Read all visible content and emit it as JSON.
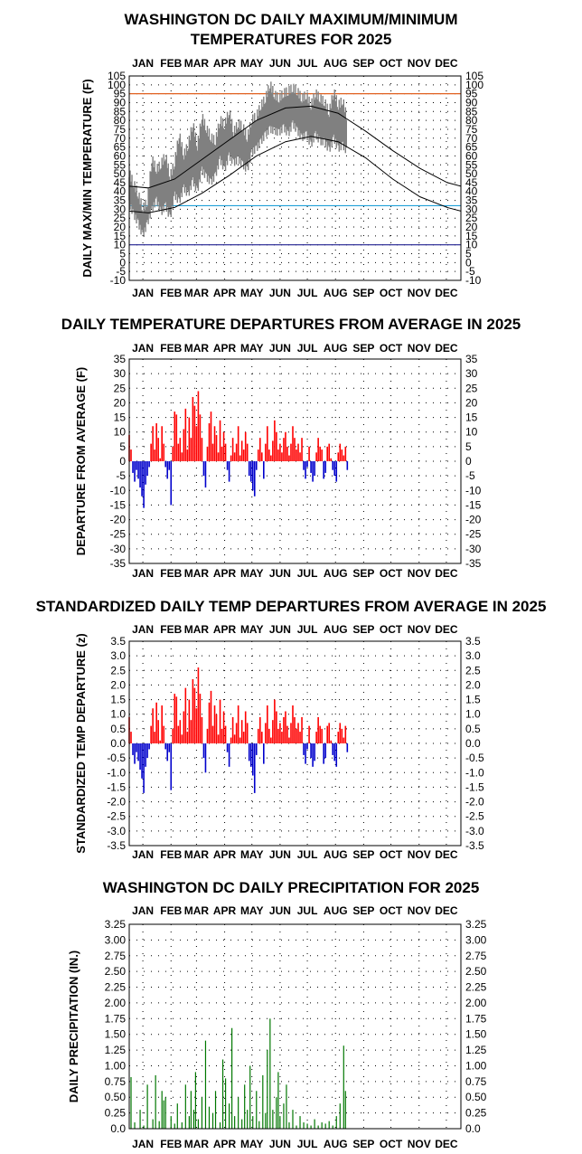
{
  "months": [
    "JAN",
    "FEB",
    "MAR",
    "APR",
    "MAY",
    "JUN",
    "JUL",
    "AUG",
    "SEP",
    "OCT",
    "NOV",
    "DEC"
  ],
  "chart_data": [
    {
      "type": "line",
      "title": [
        "WASHINGTON DC DAILY MAXIMUM/MINIMUM",
        "TEMPERATURES FOR 2025"
      ],
      "ylabel": "DAILY MAX/MIN TEMPERATURE (F)",
      "ylim": [
        -10,
        105
      ],
      "ytick_step": 5,
      "ytick_labels": [
        "105",
        "100",
        "95",
        "90",
        "85",
        "80",
        "75",
        "70",
        "65",
        "60",
        "55",
        "50",
        "45",
        "40",
        "35",
        "30",
        "25",
        "20",
        "15",
        "10",
        "5",
        "0",
        "-5",
        "-10"
      ],
      "grid": "dotted",
      "reference_lines": [
        {
          "value": 95,
          "color": "#e06020"
        },
        {
          "value": 32,
          "color": "#20a0d8"
        },
        {
          "value": 10,
          "color": "#202090"
        }
      ],
      "normal_high": {
        "day": [
          0,
          21,
          50,
          80,
          110,
          140,
          172,
          200,
          230,
          260,
          290,
          320,
          350,
          365
        ],
        "value": [
          43,
          42,
          47,
          58,
          69,
          80,
          87,
          88,
          84,
          74,
          63,
          53,
          45,
          43
        ]
      },
      "normal_low": {
        "day": [
          0,
          21,
          50,
          80,
          110,
          140,
          172,
          200,
          230,
          260,
          290,
          320,
          350,
          365
        ],
        "value": [
          29,
          28,
          31,
          39,
          49,
          60,
          68,
          71,
          68,
          59,
          47,
          37,
          31,
          29
        ]
      },
      "observed_high": {
        "day": [
          0,
          5,
          10,
          15,
          20,
          25,
          30,
          35,
          40,
          45,
          50,
          55,
          60,
          65,
          70,
          75,
          80,
          85,
          90,
          95,
          100,
          105,
          110,
          115,
          120,
          125,
          130,
          135,
          140,
          145,
          150,
          155,
          160,
          165,
          170,
          175,
          180,
          185,
          190,
          195,
          200,
          205,
          210,
          215,
          220,
          225,
          230,
          235,
          240
        ],
        "value": [
          50,
          44,
          38,
          30,
          34,
          58,
          52,
          55,
          60,
          48,
          56,
          72,
          60,
          66,
          78,
          65,
          82,
          75,
          70,
          68,
          80,
          77,
          85,
          73,
          78,
          76,
          70,
          80,
          82,
          88,
          92,
          100,
          94,
          92,
          95,
          96,
          98,
          96,
          92,
          94,
          88,
          95,
          92,
          90,
          84,
          96,
          88,
          91,
          80
        ]
      },
      "observed_low": {
        "day": [
          0,
          5,
          10,
          15,
          20,
          25,
          30,
          35,
          40,
          45,
          50,
          55,
          60,
          65,
          70,
          75,
          80,
          85,
          90,
          95,
          100,
          105,
          110,
          115,
          120,
          125,
          130,
          135,
          140,
          145,
          150,
          155,
          160,
          165,
          170,
          175,
          180,
          185,
          190,
          195,
          200,
          205,
          210,
          215,
          220,
          225,
          230,
          235,
          240
        ],
        "value": [
          33,
          27,
          22,
          15,
          22,
          30,
          35,
          28,
          32,
          25,
          38,
          34,
          42,
          38,
          46,
          40,
          52,
          48,
          45,
          49,
          58,
          52,
          60,
          56,
          58,
          55,
          52,
          62,
          64,
          68,
          72,
          75,
          74,
          73,
          76,
          72,
          78,
          74,
          70,
          72,
          66,
          72,
          68,
          68,
          63,
          70,
          64,
          66,
          62
        ]
      }
    },
    {
      "type": "bar",
      "title": [
        "DAILY TEMPERATURE DEPARTURES FROM AVERAGE IN 2025"
      ],
      "ylabel": "DEPARTURE FROM AVERAGE (F)",
      "ylim": [
        -35,
        35
      ],
      "ytick_step": 5,
      "ytick_labels": [
        "35",
        "30",
        "25",
        "20",
        "15",
        "10",
        "5",
        "0",
        "-5",
        "-10",
        "-15",
        "-20",
        "-25",
        "-30",
        "-35"
      ],
      "grid": "dotted",
      "positive_color": "#ff0000",
      "negative_color": "#0000cc",
      "day": [
        0,
        2,
        4,
        6,
        8,
        10,
        12,
        14,
        16,
        18,
        20,
        22,
        24,
        26,
        28,
        30,
        32,
        34,
        36,
        38,
        40,
        42,
        44,
        46,
        48,
        50,
        52,
        54,
        56,
        58,
        60,
        62,
        64,
        66,
        68,
        70,
        72,
        74,
        76,
        78,
        80,
        82,
        84,
        86,
        88,
        90,
        92,
        94,
        96,
        98,
        100,
        102,
        104,
        106,
        108,
        110,
        112,
        114,
        116,
        118,
        120,
        122,
        124,
        126,
        128,
        130,
        132,
        134,
        136,
        138,
        140,
        142,
        144,
        146,
        148,
        150,
        152,
        154,
        156,
        158,
        160,
        162,
        164,
        166,
        168,
        170,
        172,
        174,
        176,
        178,
        180,
        182,
        184,
        186,
        188,
        190,
        192,
        194,
        196,
        198,
        200,
        202,
        204,
        206,
        208,
        210,
        212,
        214,
        216,
        218,
        220,
        222,
        224,
        226,
        228,
        230,
        232,
        234,
        236,
        238,
        240
      ],
      "values": [
        9,
        4,
        -4,
        -7,
        -3,
        -6,
        -9,
        -12,
        -16,
        -8,
        -5,
        -2,
        6,
        12,
        4,
        13,
        8,
        1,
        12,
        6,
        -2,
        -6,
        -3,
        -15,
        5,
        17,
        16,
        6,
        8,
        3,
        11,
        18,
        4,
        15,
        8,
        22,
        19,
        12,
        24,
        16,
        8,
        -5,
        -9,
        5,
        13,
        17,
        6,
        12,
        9,
        3,
        14,
        5,
        10,
        6,
        -3,
        -7,
        2,
        8,
        3,
        6,
        12,
        2,
        7,
        4,
        10,
        6,
        -5,
        -7,
        -10,
        -12,
        -3,
        4,
        8,
        3,
        -6,
        6,
        12,
        4,
        2,
        7,
        14,
        10,
        4,
        6,
        3,
        8,
        10,
        5,
        2,
        6,
        12,
        8,
        4,
        6,
        3,
        8,
        -3,
        -6,
        -2,
        5,
        -4,
        -7,
        -5,
        3,
        8,
        5,
        4,
        -6,
        -4,
        5,
        6,
        1,
        -3,
        -5,
        -7,
        3,
        6,
        4,
        2,
        5,
        -3
      ],
      "ytick_count": 15
    },
    {
      "type": "bar",
      "title": [
        "STANDARDIZED DAILY TEMP DEPARTURES FROM AVERAGE IN 2025"
      ],
      "ylabel": "STANDARDIZED TEMP DEPARTURE (z)",
      "ylim": [
        -3.5,
        3.5
      ],
      "ytick_step": 0.5,
      "ytick_labels": [
        "3.5",
        "3.0",
        "2.5",
        "2.0",
        "1.5",
        "1.0",
        "0.5",
        "0.0",
        "-0.5",
        "-1.0",
        "-1.5",
        "-2.0",
        "-2.5",
        "-3.0",
        "-3.5"
      ],
      "grid": "dotted",
      "positive_color": "#ff0000",
      "negative_color": "#0000cc",
      "day": [
        0,
        2,
        4,
        6,
        8,
        10,
        12,
        14,
        16,
        18,
        20,
        22,
        24,
        26,
        28,
        30,
        32,
        34,
        36,
        38,
        40,
        42,
        44,
        46,
        48,
        50,
        52,
        54,
        56,
        58,
        60,
        62,
        64,
        66,
        68,
        70,
        72,
        74,
        76,
        78,
        80,
        82,
        84,
        86,
        88,
        90,
        92,
        94,
        96,
        98,
        100,
        102,
        104,
        106,
        108,
        110,
        112,
        114,
        116,
        118,
        120,
        122,
        124,
        126,
        128,
        130,
        132,
        134,
        136,
        138,
        140,
        142,
        144,
        146,
        148,
        150,
        152,
        154,
        156,
        158,
        160,
        162,
        164,
        166,
        168,
        170,
        172,
        174,
        176,
        178,
        180,
        182,
        184,
        186,
        188,
        190,
        192,
        194,
        196,
        198,
        200,
        202,
        204,
        206,
        208,
        210,
        212,
        214,
        216,
        218,
        220,
        222,
        224,
        226,
        228,
        230,
        232,
        234,
        236,
        238,
        240
      ],
      "values": [
        0.9,
        0.4,
        -0.4,
        -0.7,
        -0.3,
        -0.6,
        -0.9,
        -1.2,
        -1.7,
        -0.8,
        -0.5,
        -0.2,
        0.6,
        1.2,
        0.4,
        1.4,
        0.8,
        0.1,
        1.3,
        0.6,
        -0.2,
        -0.6,
        -0.3,
        -1.6,
        0.5,
        1.7,
        1.6,
        0.6,
        0.8,
        0.3,
        1.1,
        1.9,
        0.4,
        1.5,
        0.8,
        2.2,
        1.9,
        1.2,
        2.6,
        1.7,
        0.9,
        -0.5,
        -1.0,
        0.5,
        1.4,
        1.8,
        0.6,
        1.3,
        1.0,
        0.3,
        1.5,
        0.5,
        1.1,
        0.6,
        -0.3,
        -0.8,
        0.2,
        0.9,
        0.3,
        0.7,
        1.3,
        0.2,
        0.8,
        0.4,
        1.1,
        0.7,
        -0.6,
        -0.8,
        -1.1,
        -1.7,
        -0.4,
        0.5,
        0.9,
        0.4,
        -0.7,
        0.7,
        1.3,
        0.5,
        0.2,
        0.8,
        1.5,
        1.1,
        0.5,
        0.7,
        0.4,
        0.9,
        1.1,
        0.6,
        0.2,
        0.7,
        1.3,
        0.9,
        0.5,
        0.7,
        0.4,
        0.9,
        -0.4,
        -0.7,
        -0.2,
        0.6,
        -0.5,
        -0.8,
        -0.6,
        0.4,
        0.9,
        0.6,
        0.5,
        -0.7,
        -0.5,
        0.6,
        0.7,
        0.1,
        -0.4,
        -0.6,
        -0.8,
        0.4,
        0.7,
        0.5,
        0.2,
        0.6,
        -0.3
      ]
    },
    {
      "type": "bar",
      "title": [
        "WASHINGTON DC DAILY PRECIPITATION FOR 2025"
      ],
      "ylabel": "DAILY PRECIPITATION (IN.)",
      "ylim": [
        0,
        3.25
      ],
      "ytick_step": 0.25,
      "ytick_labels": [
        "3.25",
        "3.00",
        "2.75",
        "2.50",
        "2.25",
        "2.00",
        "1.75",
        "1.50",
        "1.25",
        "1.00",
        "0.75",
        "0.50",
        "0.25",
        "0.0"
      ],
      "grid": "dotted",
      "bar_color": "#007700",
      "day": [
        2,
        6,
        12,
        16,
        20,
        26,
        29,
        33,
        36,
        38,
        40,
        46,
        50,
        53,
        58,
        62,
        66,
        68,
        71,
        73,
        76,
        80,
        84,
        88,
        92,
        95,
        100,
        103,
        106,
        110,
        113,
        116,
        120,
        124,
        127,
        130,
        133,
        136,
        140,
        143,
        147,
        150,
        152,
        155,
        158,
        162,
        164,
        166,
        170,
        173,
        176,
        180,
        184,
        188,
        192,
        196,
        200,
        204,
        208,
        212,
        216,
        220,
        224,
        228,
        232,
        236,
        238
      ],
      "values": [
        0.82,
        0.1,
        0.3,
        0.05,
        0.7,
        0.15,
        0.85,
        0.12,
        0.6,
        0.45,
        0.5,
        0.2,
        0.08,
        0.4,
        0.1,
        0.7,
        0.2,
        0.6,
        0.3,
        0.9,
        0.15,
        0.5,
        1.4,
        0.35,
        0.25,
        0.6,
        0.1,
        1.1,
        0.8,
        0.4,
        1.6,
        0.2,
        0.5,
        0.15,
        0.7,
        0.3,
        1.0,
        0.2,
        0.6,
        0.12,
        0.85,
        0.25,
        1.25,
        1.75,
        0.3,
        0.5,
        0.9,
        0.2,
        0.4,
        0.7,
        0.1,
        0.3,
        0.05,
        0.2,
        0.1,
        0.08,
        0.05,
        0.15,
        0.05,
        0.1,
        0.08,
        0.12,
        0.05,
        0.2,
        0.4,
        1.32,
        0.6
      ]
    }
  ]
}
